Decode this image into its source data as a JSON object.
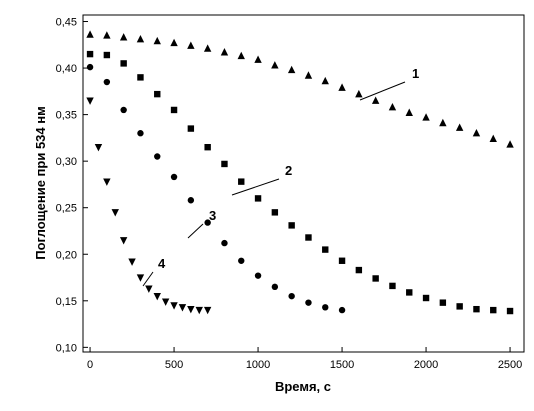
{
  "chart_data": {
    "type": "scatter",
    "x_label": "Время, с",
    "y_label": "Поглощение при 534 нм",
    "xlim": [
      -42,
      2583
    ],
    "ylim": [
      0.095,
      0.457
    ],
    "xticks": [
      0,
      500,
      1000,
      1500,
      2000,
      2500
    ],
    "yticks": [
      {
        "value": 0.1,
        "label": "0,10"
      },
      {
        "value": 0.15,
        "label": "0,15"
      },
      {
        "value": 0.2,
        "label": "0,20"
      },
      {
        "value": 0.25,
        "label": "0,25"
      },
      {
        "value": 0.3,
        "label": "0,30"
      },
      {
        "value": 0.35,
        "label": "0,35"
      },
      {
        "value": 0.4,
        "label": "0,40"
      },
      {
        "value": 0.45,
        "label": "0,45"
      }
    ],
    "series": [
      {
        "name": "1",
        "color": "#000000",
        "marker": "triangle-up",
        "x": [
          0,
          100,
          200,
          300,
          400,
          500,
          600,
          700,
          800,
          900,
          1000,
          1100,
          1200,
          1300,
          1400,
          1500,
          1600,
          1700,
          1800,
          1900,
          2000,
          2100,
          2200,
          2300,
          2400,
          2500
        ],
        "values": [
          0.436,
          0.435,
          0.433,
          0.431,
          0.429,
          0.427,
          0.424,
          0.421,
          0.417,
          0.413,
          0.409,
          0.403,
          0.398,
          0.392,
          0.386,
          0.379,
          0.372,
          0.365,
          0.358,
          0.352,
          0.347,
          0.341,
          0.336,
          0.33,
          0.324,
          0.318
        ]
      },
      {
        "name": "2",
        "color": "#000000",
        "marker": "square",
        "x": [
          0,
          100,
          200,
          300,
          400,
          500,
          600,
          700,
          800,
          900,
          1000,
          1100,
          1200,
          1300,
          1400,
          1500,
          1600,
          1700,
          1800,
          1900,
          2000,
          2100,
          2200,
          2300,
          2400,
          2500
        ],
        "values": [
          0.415,
          0.414,
          0.405,
          0.39,
          0.372,
          0.355,
          0.335,
          0.315,
          0.297,
          0.278,
          0.26,
          0.245,
          0.231,
          0.218,
          0.205,
          0.193,
          0.183,
          0.174,
          0.166,
          0.159,
          0.153,
          0.148,
          0.144,
          0.141,
          0.14,
          0.139
        ]
      },
      {
        "name": "3",
        "color": "#000000",
        "marker": "circle",
        "x": [
          0,
          100,
          200,
          300,
          400,
          500,
          600,
          700,
          800,
          900,
          1000,
          1100,
          1200,
          1300,
          1400,
          1500
        ],
        "values": [
          0.401,
          0.385,
          0.355,
          0.33,
          0.305,
          0.283,
          0.258,
          0.234,
          0.212,
          0.193,
          0.177,
          0.165,
          0.155,
          0.148,
          0.143,
          0.14
        ]
      },
      {
        "name": "4",
        "color": "#000000",
        "marker": "triangle-down",
        "x": [
          0,
          50,
          100,
          150,
          200,
          250,
          300,
          350,
          400,
          450,
          500,
          550,
          600,
          650,
          700
        ],
        "values": [
          0.365,
          0.315,
          0.278,
          0.245,
          0.215,
          0.192,
          0.175,
          0.163,
          0.155,
          0.149,
          0.145,
          0.143,
          0.141,
          0.14,
          0.14
        ]
      }
    ]
  }
}
